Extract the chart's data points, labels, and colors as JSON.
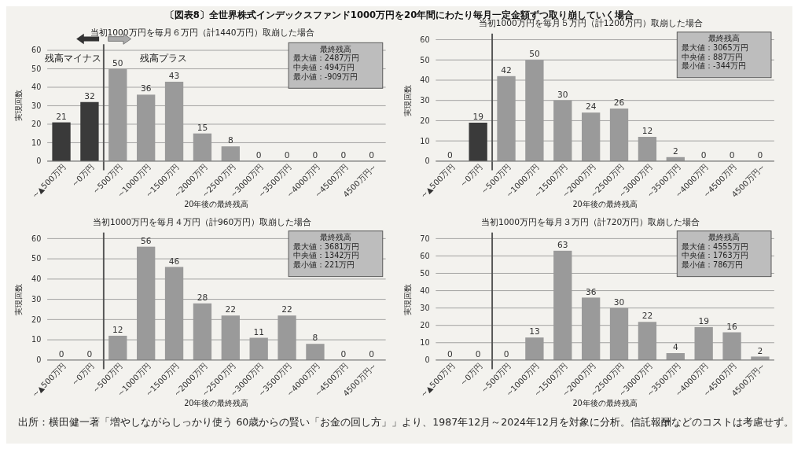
{
  "chart_data": [
    {
      "type": "bar",
      "title": "〔図表8〕全世界株式インデックスファンド1000万円を20年間にわたり毎月一定金額ずつ取り崩していく場合",
      "subtitle": "当初1000万円を毎月６万円（計1440万円）取崩した場合",
      "xlabel": "20年後の最終残高",
      "ylabel": "実現回数",
      "categories": [
        "~▲500万円",
        "~0万円",
        "~500万円",
        "~1000万円",
        "~1500万円",
        "~2000万円",
        "~2500万円",
        "~3000万円",
        "~3500万円",
        "~4000万円",
        "~4500万円",
        "4500万円~"
      ],
      "values": [
        21,
        32,
        50,
        36,
        43,
        15,
        8,
        0,
        0,
        0,
        0,
        0
      ],
      "colors": [
        "#3a3a3a",
        "#3a3a3a",
        "#9a9a9a",
        "#9a9a9a",
        "#9a9a9a",
        "#9a9a9a",
        "#9a9a9a",
        "#9a9a9a",
        "#9a9a9a",
        "#9a9a9a",
        "#9a9a9a",
        "#9a9a9a"
      ],
      "ylim": [
        0,
        60
      ],
      "yticks": [
        0,
        10,
        20,
        30,
        40,
        50,
        60
      ],
      "grid": "y",
      "data_labels": true,
      "ref_lines": [
        {
          "axis": "x",
          "value": "~0万円",
          "color": "#555555"
        }
      ],
      "annotations": [
        "最終残高",
        "最大値：2487万円",
        "中央値：494万円",
        "最小値：-909万円",
        "残高マイナス",
        "残高プラス"
      ]
    },
    {
      "type": "bar",
      "title": "当初1000万円を毎月５万円（計1200万円）取崩した場合",
      "xlabel": "20年後の最終残高",
      "ylabel": "実現回数",
      "categories": [
        "~▲500万円",
        "~0万円",
        "~500万円",
        "~1000万円",
        "~1500万円",
        "~2000万円",
        "~2500万円",
        "~3000万円",
        "~3500万円",
        "~4000万円",
        "~4500万円",
        "4500万円~"
      ],
      "values": [
        0,
        19,
        42,
        50,
        30,
        24,
        26,
        12,
        2,
        0,
        0,
        0
      ],
      "colors": [
        "#3a3a3a",
        "#3a3a3a",
        "#9a9a9a",
        "#9a9a9a",
        "#9a9a9a",
        "#9a9a9a",
        "#9a9a9a",
        "#9a9a9a",
        "#9a9a9a",
        "#9a9a9a",
        "#9a9a9a",
        "#9a9a9a"
      ],
      "ylim": [
        0,
        60
      ],
      "yticks": [
        0,
        10,
        20,
        30,
        40,
        50,
        60
      ],
      "grid": "y",
      "data_labels": true,
      "ref_lines": [
        {
          "axis": "x",
          "value": "~0万円",
          "color": "#555555"
        }
      ],
      "annotations": [
        "最終残高",
        "最大値：3065万円",
        "中央値：887万円",
        "最小値：-344万円"
      ]
    },
    {
      "type": "bar",
      "title": "当初1000万円を毎月４万円（計960万円）取崩した場合",
      "xlabel": "20年後の最終残高",
      "ylabel": "実現回数",
      "categories": [
        "~▲500万円",
        "~0万円",
        "~500万円",
        "~1000万円",
        "~1500万円",
        "~2000万円",
        "~2500万円",
        "~3000万円",
        "~3500万円",
        "~4000万円",
        "~4500万円",
        "4500万円~"
      ],
      "values": [
        0,
        0,
        12,
        56,
        46,
        28,
        22,
        11,
        22,
        8,
        0,
        0
      ],
      "colors": [
        "#9a9a9a",
        "#9a9a9a",
        "#9a9a9a",
        "#9a9a9a",
        "#9a9a9a",
        "#9a9a9a",
        "#9a9a9a",
        "#9a9a9a",
        "#9a9a9a",
        "#9a9a9a",
        "#9a9a9a",
        "#9a9a9a"
      ],
      "ylim": [
        0,
        60
      ],
      "yticks": [
        0,
        10,
        20,
        30,
        40,
        50,
        60
      ],
      "grid": "y",
      "data_labels": true,
      "ref_lines": [
        {
          "axis": "x",
          "value": "~0万円",
          "color": "#555555"
        }
      ],
      "annotations": [
        "最終残高",
        "最大値：3681万円",
        "中央値：1342万円",
        "最小値：221万円",
        "出所：横田健一著「増やしながらしっかり使う 60歳からの賢い「お金の回し方」」より、1987年12月～2024年12月を対象に分析。信託報酬などのコストは考慮せず。"
      ]
    },
    {
      "type": "bar",
      "title": "当初1000万円を毎月３万円（計720万円）取崩した場合",
      "xlabel": "20年後の最終残高",
      "ylabel": "実現回数",
      "categories": [
        "~▲500万円",
        "~0万円",
        "~500万円",
        "~1000万円",
        "~1500万円",
        "~2000万円",
        "~2500万円",
        "~3000万円",
        "~3500万円",
        "~4000万円",
        "~4500万円",
        "4500万円~"
      ],
      "values": [
        0,
        0,
        0,
        13,
        63,
        36,
        30,
        22,
        4,
        19,
        16,
        2
      ],
      "colors": [
        "#9a9a9a",
        "#9a9a9a",
        "#9a9a9a",
        "#9a9a9a",
        "#9a9a9a",
        "#9a9a9a",
        "#9a9a9a",
        "#9a9a9a",
        "#9a9a9a",
        "#9a9a9a",
        "#9a9a9a",
        "#9a9a9a"
      ],
      "ylim": [
        0,
        70
      ],
      "yticks": [
        0,
        10,
        20,
        30,
        40,
        50,
        60,
        70
      ],
      "grid": "y",
      "data_labels": true,
      "ref_lines": [
        {
          "axis": "x",
          "value": "~0万円",
          "color": "#555555"
        }
      ],
      "annotations": [
        "最終残高",
        "最大値：4555万円",
        "中央値：1763万円",
        "最小値：786万円"
      ]
    }
  ]
}
